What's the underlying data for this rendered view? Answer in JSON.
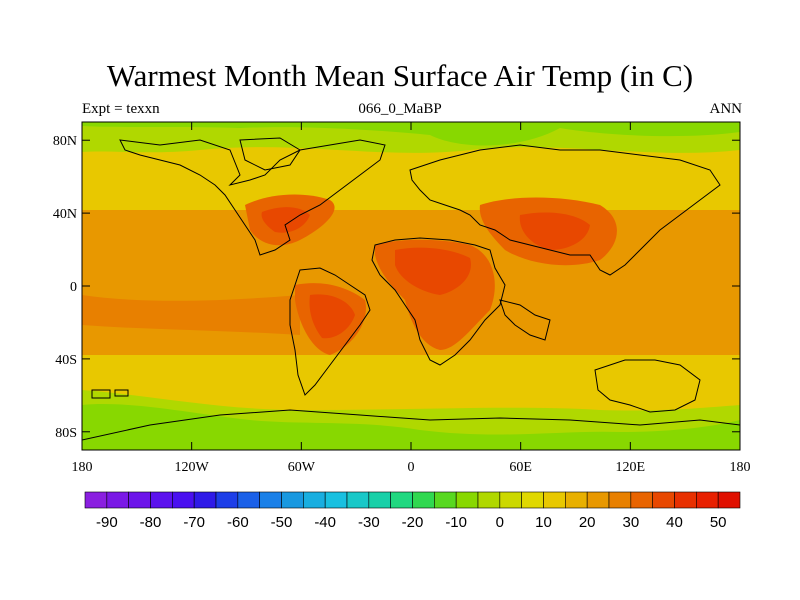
{
  "title": "Warmest Month Mean Surface Air Temp (in C)",
  "subtitle_left": "Expt = texxn",
  "subtitle_center": "066_0_MaBP",
  "subtitle_right": "ANN",
  "map": {
    "projection": "cylindrical equidistant",
    "lon_range": [
      -180,
      180
    ],
    "lat_range": [
      -90,
      90
    ],
    "lon_ticks": [
      {
        "value": -180,
        "label": "180"
      },
      {
        "value": -120,
        "label": "120W"
      },
      {
        "value": -60,
        "label": "60W"
      },
      {
        "value": 0,
        "label": "0"
      },
      {
        "value": 60,
        "label": "60E"
      },
      {
        "value": 120,
        "label": "120E"
      },
      {
        "value": 180,
        "label": "180"
      }
    ],
    "lat_ticks": [
      {
        "value": 80,
        "label": "80N"
      },
      {
        "value": 40,
        "label": "40N"
      },
      {
        "value": 0,
        "label": "0"
      },
      {
        "value": -40,
        "label": "40S"
      },
      {
        "value": -80,
        "label": "80S"
      }
    ]
  },
  "colorbar": {
    "levels": [
      -95,
      -90,
      -85,
      -80,
      -75,
      -70,
      -65,
      -60,
      -55,
      -50,
      -45,
      -40,
      -35,
      -30,
      -25,
      -20,
      -15,
      -10,
      -5,
      0,
      5,
      10,
      15,
      20,
      25,
      30,
      35,
      40,
      45,
      50,
      55
    ],
    "labels": [
      "-90",
      "-80",
      "-70",
      "-60",
      "-50",
      "-40",
      "-30",
      "-20",
      "-10",
      "0",
      "10",
      "20",
      "30",
      "40",
      "50"
    ],
    "label_values": [
      -90,
      -80,
      -70,
      -60,
      -50,
      -40,
      -30,
      -20,
      -10,
      0,
      10,
      20,
      30,
      40,
      50
    ],
    "colors": [
      "#8a1fe0",
      "#7a18e6",
      "#6c14ea",
      "#5c12ee",
      "#4a10f0",
      "#2f1ae8",
      "#1d3ee8",
      "#1a60e8",
      "#1a80e8",
      "#1898e0",
      "#18aee0",
      "#18c0e0",
      "#18c8c8",
      "#18d0a8",
      "#20d880",
      "#30d850",
      "#58d820",
      "#88d800",
      "#b0d800",
      "#ccd800",
      "#e0d800",
      "#e8c800",
      "#e8b000",
      "#e89800",
      "#e88000",
      "#e86400",
      "#e84800",
      "#e83000",
      "#e82000",
      "#e01000"
    ]
  }
}
